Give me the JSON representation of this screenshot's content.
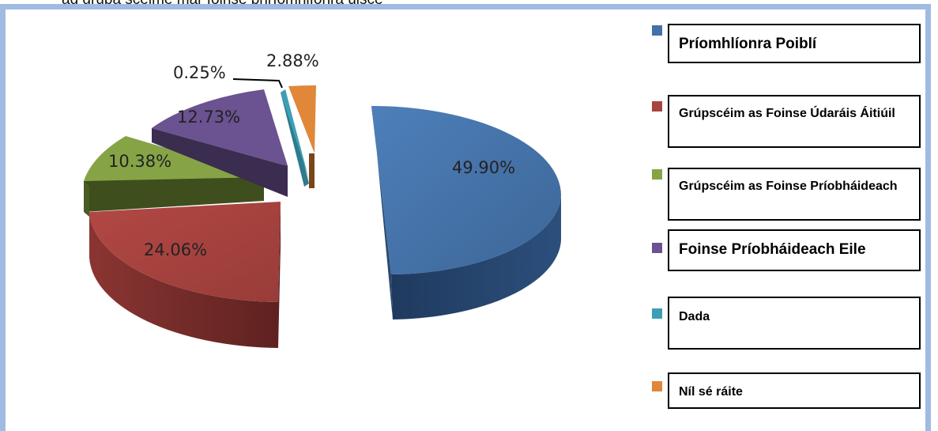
{
  "header_text": "ag grúpa scéime mar foinse phríomhlíonra uisce",
  "colors": {
    "frame_border": "#9fbbe2",
    "slice_1": "#4472a8",
    "slice_2": "#a9433f",
    "slice_3": "#86a446",
    "slice_4": "#6b5290",
    "slice_5": "#3d9fb5",
    "slice_6": "#e0873a"
  },
  "chart_data": {
    "type": "pie",
    "style": "3d-exploded",
    "slices": [
      {
        "label": "Príomhlíonra Poiblí",
        "value": 49.9,
        "display": "49.90%"
      },
      {
        "label": "Grúpscéim as Foinse Údaráis Áitiúil",
        "value": 24.06,
        "display": "24.06%"
      },
      {
        "label": "Grúpscéim as Foinse Príobháideach",
        "value": 10.38,
        "display": "10.38%"
      },
      {
        "label": "Foinse Príobháideach Eile",
        "value": 12.73,
        "display": "12.73%"
      },
      {
        "label": "Dada",
        "value": 0.25,
        "display": "0.25%"
      },
      {
        "label": "Níl sé ráite",
        "value": 2.88,
        "display": "2.88%"
      }
    ],
    "legend_position": "right"
  }
}
